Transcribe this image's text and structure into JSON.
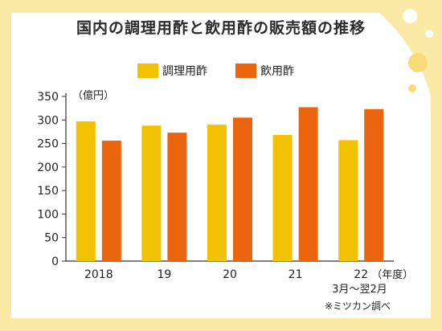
{
  "title": "国内の調理用酢と飲用酢の販売額の推移",
  "source_note": "※ミツカン調べ",
  "colors": {
    "background": "#ffffff",
    "border": "#fbe9a6",
    "series_cooking": "#f2c200",
    "series_drinking": "#ea650d"
  },
  "chart_data": {
    "type": "bar",
    "title": "国内の調理用酢と飲用酢の販売額の推移",
    "y_unit_label": "（億円）",
    "x_unit_label": "（年度）",
    "x_note": "3月〜翌2月",
    "categories": [
      "2018",
      "19",
      "20",
      "21",
      "22"
    ],
    "series": [
      {
        "name": "調理用酢",
        "values": [
          297,
          288,
          290,
          268,
          257
        ]
      },
      {
        "name": "飲用酢",
        "values": [
          256,
          273,
          305,
          327,
          323
        ]
      }
    ],
    "ylim": [
      0,
      350
    ],
    "yticks": [
      0,
      50,
      100,
      150,
      200,
      250,
      300,
      350
    ],
    "legend_position": "top-center",
    "grid": false
  }
}
